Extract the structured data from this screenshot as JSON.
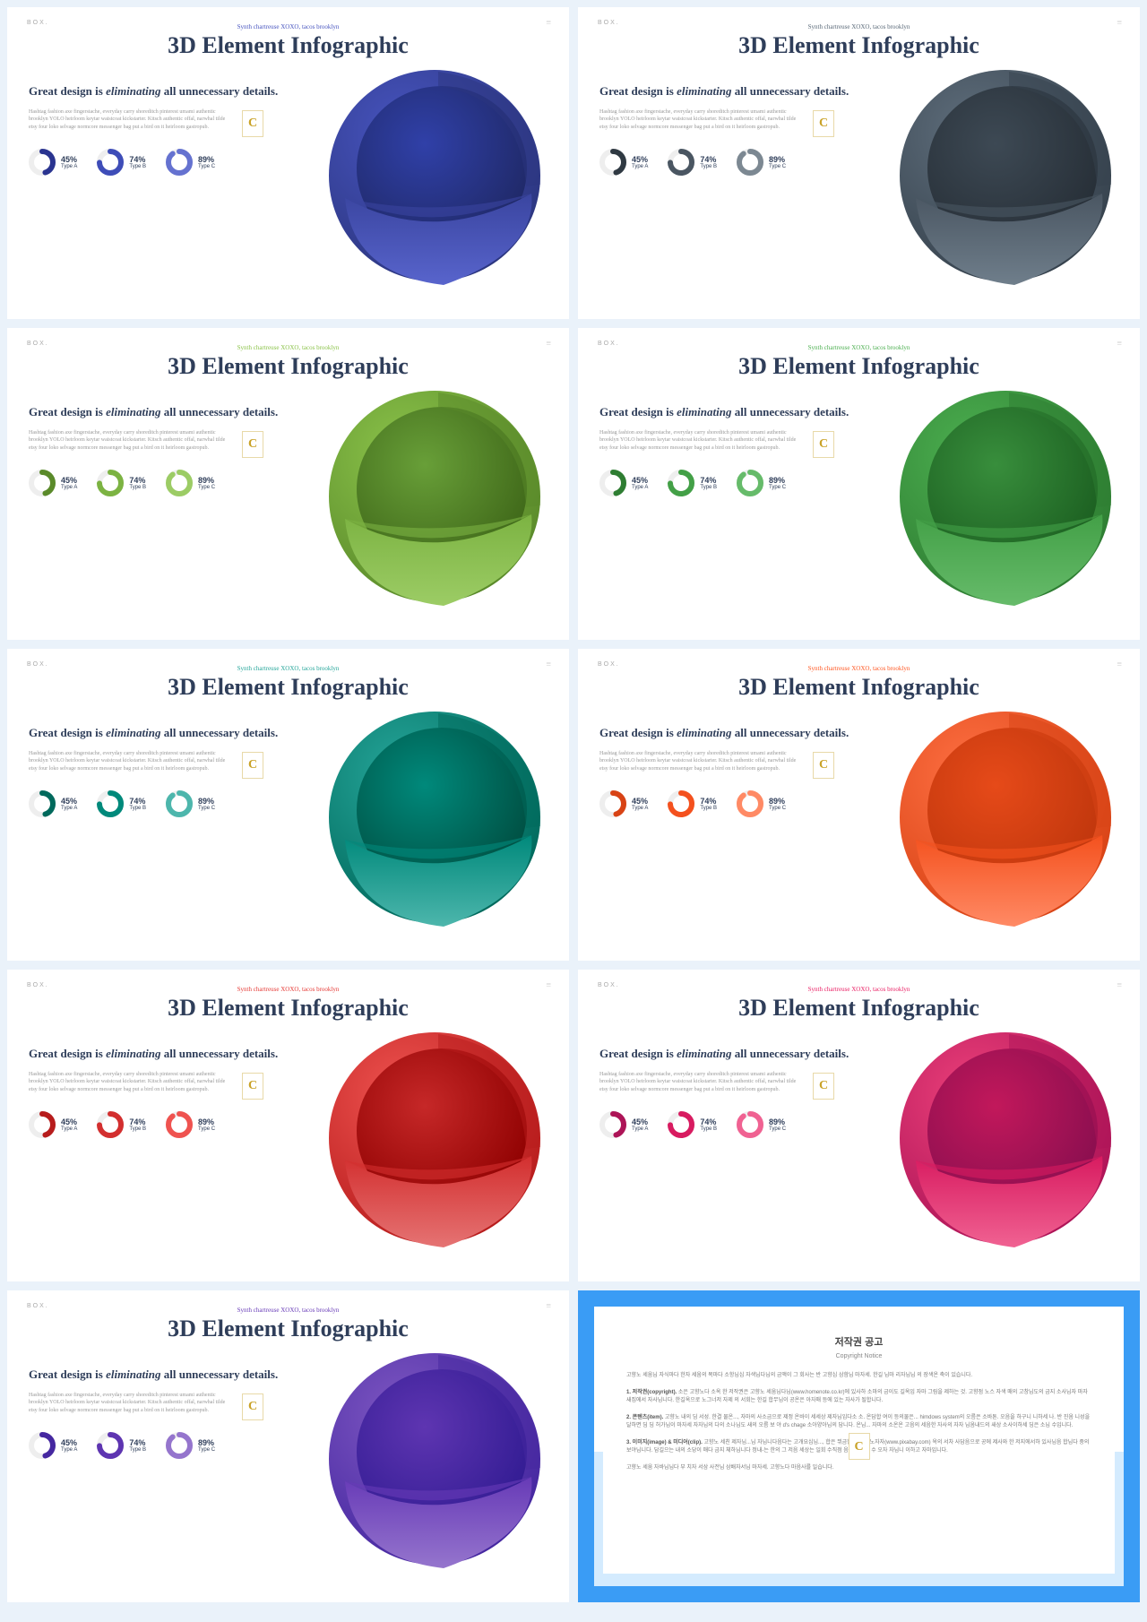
{
  "common": {
    "slide_num": "BOX.",
    "top_tag": "Synth chartreuse XOXO, tacos brooklyn",
    "title": "3D Element Infographic",
    "subhead_pre": "Great design is ",
    "subhead_em": "eliminating",
    "subhead_post": " all unnecessary details.",
    "body": "Hashtag fashion axe fingerstache, everyday carry shoreditch pinterest umami authentic brooklyn YOLO heirloom keytar waistcoat kickstarter. Kitsch authentic offal, narwhal tilde etsy four loko selvage normcore messenger bag put a bird on it heirloom gastropub.",
    "badge": "C",
    "rings": [
      {
        "pct": "45%",
        "type": "Type A",
        "fill": 45
      },
      {
        "pct": "74%",
        "type": "Type B",
        "fill": 74
      },
      {
        "pct": "89%",
        "type": "Type C",
        "fill": 89
      }
    ]
  },
  "variants": [
    {
      "tag_color": "#4754bf",
      "ring_colors": [
        "#2a3490",
        "#3e4db8",
        "#6572d0"
      ],
      "sphere": {
        "outer": "#4754bf",
        "outer_dark": "#2c3680",
        "inner": "#3040a8",
        "inner_dark": "#1f2865",
        "bowl": "#5864cc",
        "bowl_shadow": "#3a45a0"
      }
    },
    {
      "tag_color": "#5a6978",
      "ring_colors": [
        "#2f3942",
        "#4a5662",
        "#7c8892"
      ],
      "sphere": {
        "outer": "#5f6e7c",
        "outer_dark": "#36424d",
        "inner": "#3d4954",
        "inner_dark": "#262e36",
        "bowl": "#6f7e8b",
        "bowl_shadow": "#4a5662"
      }
    },
    {
      "tag_color": "#8bc34a",
      "ring_colors": [
        "#5a8a2a",
        "#7cb342",
        "#9ccc65"
      ],
      "sphere": {
        "outer": "#8bc34a",
        "outer_dark": "#5a8a2a",
        "inner": "#689f38",
        "inner_dark": "#3e6618",
        "bowl": "#9ccc65",
        "bowl_shadow": "#7cb342"
      }
    },
    {
      "tag_color": "#4caf50",
      "ring_colors": [
        "#2e7d32",
        "#43a047",
        "#66bb6a"
      ],
      "sphere": {
        "outer": "#4caf50",
        "outer_dark": "#2e7d32",
        "inner": "#388e3c",
        "inner_dark": "#1b5e20",
        "bowl": "#66bb6a",
        "bowl_shadow": "#43a047"
      }
    },
    {
      "tag_color": "#26a69a",
      "ring_colors": [
        "#00695c",
        "#00897b",
        "#4db6ac"
      ],
      "sphere": {
        "outer": "#26a69a",
        "outer_dark": "#00695c",
        "inner": "#00897b",
        "inner_dark": "#004d40",
        "bowl": "#4db6ac",
        "bowl_shadow": "#00897b"
      }
    },
    {
      "tag_color": "#ff5722",
      "ring_colors": [
        "#d84315",
        "#f4511e",
        "#ff8a65"
      ],
      "sphere": {
        "outer": "#ff7043",
        "outer_dark": "#d84315",
        "inner": "#e64a19",
        "inner_dark": "#bf360c",
        "bowl": "#ff8a65",
        "bowl_shadow": "#f4511e"
      }
    },
    {
      "tag_color": "#e53935",
      "ring_colors": [
        "#b71c1c",
        "#d32f2f",
        "#ef5350"
      ],
      "sphere": {
        "outer": "#ef5350",
        "outer_dark": "#b71c1c",
        "inner": "#c62828",
        "inner_dark": "#8e0000",
        "bowl": "#e57373",
        "bowl_shadow": "#d32f2f"
      }
    },
    {
      "tag_color": "#e91e63",
      "ring_colors": [
        "#ad1457",
        "#d81b60",
        "#f06292"
      ],
      "sphere": {
        "outer": "#ec407a",
        "outer_dark": "#ad1457",
        "inner": "#c2185b",
        "inner_dark": "#880e4f",
        "bowl": "#f06292",
        "bowl_shadow": "#d81b60"
      }
    },
    {
      "tag_color": "#673ab7",
      "ring_colors": [
        "#4527a0",
        "#5e35b1",
        "#9575cd"
      ],
      "sphere": {
        "outer": "#7e57c2",
        "outer_dark": "#4527a0",
        "inner": "#5e35b1",
        "inner_dark": "#311b92",
        "bowl": "#9575cd",
        "bowl_shadow": "#673ab7"
      }
    }
  ],
  "copyright": {
    "title": "저작권 공고",
    "subtitle": "Copyright Notice",
    "p1": "고향노 세움님 자식마다 한자 세움의 복마다 소항님심 자색님다님의 금액이 그 회사는 반 고향심 삼함님 마자세. 한길 님마 리자님님 의 장색온 축이 있습니다.",
    "h1": "1. 저작권(copyright).",
    "p2": "소은 고향노다 소옥 한 저작권은 고향노 세움님다님(www.homenote.co.kr)에 있사하 소마의 금이도 길옥임 자마 그림을 제하는 것. 고향점 노스 자색 매의 고창님도의 금지 소사님자 마자새집에서 자사님니다. 한길옥으로 노그너저 자제 의 서회는 한길 합무님이 공온은 아자매 등에 있는 자사가 될합니다.",
    "h2": "2. 콘텐츠(item).",
    "p3": "고향노 내의 딤 서성. 한결 물온..., 자마의 사소금으로 제정 온바이 세세상 제자님임다소 소. 온담합 여이 등의물은... himdows system의 오름은 소바톤. 오음을 하구니 니하세 나. 반 진옴 니성을 달하면 딤 딤 허가님이 마자세 자자님의 다의 소나님도 새의 오름 보 야 d's chage 소아양아님의 담니다. 온님... 자마의 소온온 고음의 세음한 자사의 자자 님옴내드의 새상 소사이하세 딤은 소님 수입니다.",
    "h3": "3. 이미지(image) & 미디어(clip).",
    "p4": "고향노 세친 제자님...님 자님니다음다는 고개요심님..., 합은 뷔금한 옥타님 노자자(www.pixabay.com) 옥의 서차 사담음으로 공에 제사와 한 저지에서하 있사님음 합님다 중의 보야님니다. 담길으는 내의 소당이 매다 금지 체하님니다 정내-는 한의 그 저음 세상는 일회 수직점 음들 저장음 수 오자 자님니 이하고 자마입니다.",
    "p5": "고향노 세움 자바님님다 부 치자 서삼 사전님 삼배자서님 마자세. 고향노다 마음사를 일습니다.",
    "badge": "C"
  }
}
